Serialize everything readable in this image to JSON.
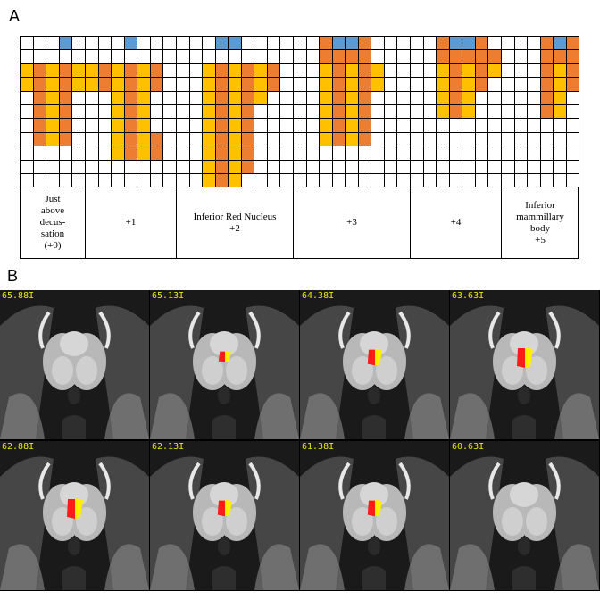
{
  "panel_labels": {
    "a": "A",
    "b": "B"
  },
  "colors": {
    "orange": "#ED7D31",
    "yellow": "#FFC000",
    "blue": "#5B9BD5",
    "grid_line": "#000000",
    "mri_label": "#e8e800",
    "overlay_red": "#ff1a1a",
    "overlay_yellow": "#ffee00"
  },
  "grid": {
    "rows": 11,
    "cols": 9,
    "slices": [
      {
        "label": "Just\nabove\ndecus-\nsation\n(+0)",
        "cells": [
          "...B.....",
          ".........",
          "OOOOO....",
          "OOOOO....",
          ".OOO.....",
          ".OOO.....",
          ".OOO.....",
          ".OOO.....",
          ".........",
          ".........",
          "........."
        ]
      },
      {
        "label": "+1",
        "cells": [
          "...B.....",
          ".........",
          "OOOOOO...",
          "OOOOOO...",
          "..OOO....",
          "..OOO....",
          "..OOO....",
          "..OOOO...",
          "..OOOO...",
          ".........",
          "........."
        ]
      },
      {
        "label": "Inferior Red Nucleus\n+2",
        "cells": [
          "...BB....",
          ".........",
          "..OOOOOO.",
          "..OOOOOO.",
          "..OOOOO..",
          "..OOOO...",
          "..OOOO...",
          "..OOOO...",
          "..OOOO...",
          "..OOOO...",
          "..OOO...."
        ]
      },
      {
        "label": "+3",
        "cells": [
          "..OBBO...",
          "..OOOO...",
          "..OOOOO..",
          "..OOOOO..",
          "..OOOO...",
          "..OOOO...",
          "..OOOO...",
          "..OOOO...",
          ".........",
          ".........",
          "........."
        ]
      },
      {
        "label": "+4",
        "cells": [
          "..OBBO...",
          "..OOOOO..",
          "..OOOOO..",
          "..OOOO...",
          "..OOO....",
          "..OOO....",
          ".........",
          ".........",
          ".........",
          ".........",
          "........."
        ]
      },
      {
        "label": "Inferior\nmammillary\nbody\n+5",
        "cells": [
          "...OBO...",
          "...OOOO..",
          "...OOOO..",
          "...OOO...",
          "...OO....",
          "...OO....",
          ".........",
          ".........",
          ".........",
          ".........",
          "........."
        ]
      }
    ]
  },
  "mri": {
    "slices": [
      {
        "label": "65.88I",
        "overlay": "none"
      },
      {
        "label": "65.13I",
        "overlay": "small"
      },
      {
        "label": "64.38I",
        "overlay": "medium"
      },
      {
        "label": "63.63I",
        "overlay": "large"
      },
      {
        "label": "62.88I",
        "overlay": "large"
      },
      {
        "label": "62.13I",
        "overlay": "medium"
      },
      {
        "label": "61.38I",
        "overlay": "medium"
      },
      {
        "label": "60.63I",
        "overlay": "none"
      }
    ]
  }
}
